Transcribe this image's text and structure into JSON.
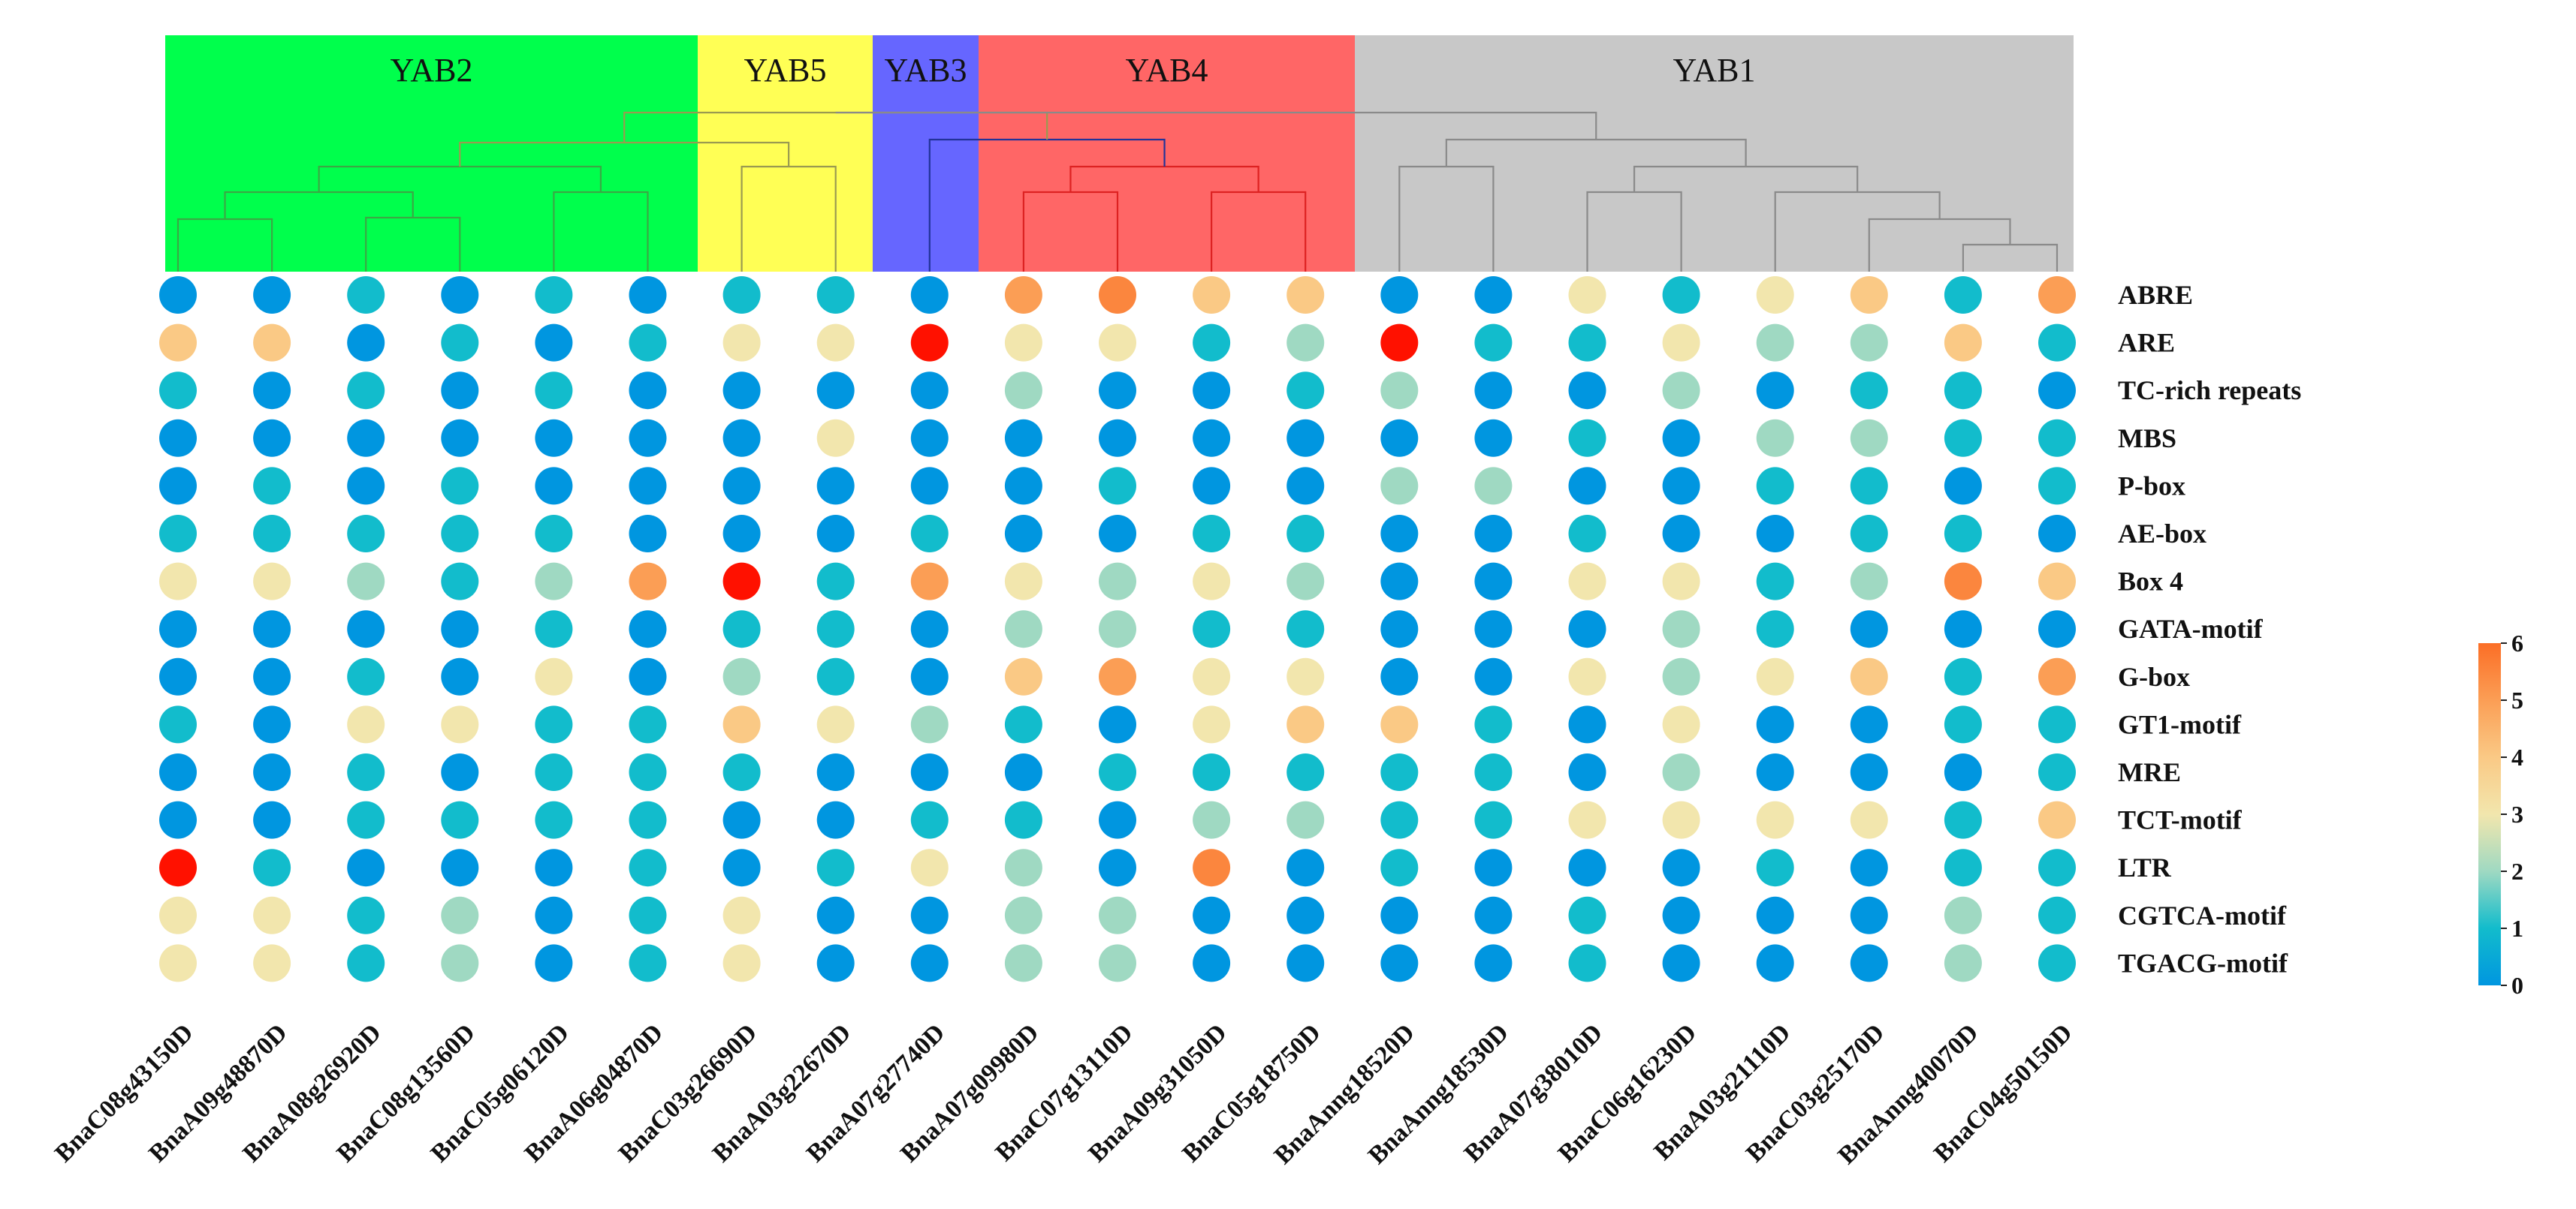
{
  "chart_data": {
    "type": "heatmap",
    "title": "",
    "groups": [
      {
        "name": "YAB2",
        "color": "#00ff4c"
      },
      {
        "name": "YAB5",
        "color": "#ffff55"
      },
      {
        "name": "YAB3",
        "color": "#6666ff"
      },
      {
        "name": "YAB4",
        "color": "#ff6666"
      },
      {
        "name": "YAB1",
        "color": "#c8c8c8"
      }
    ],
    "columns": [
      "BnaC08g43150D",
      "BnaA09g48870D",
      "BnaA08g26920D",
      "BnaC08g13560D",
      "BnaC05g06120D",
      "BnaA06g04870D",
      "BnaC03g26690D",
      "BnaA03g22670D",
      "BnaA07g27740D",
      "BnaA07g09980D",
      "BnaC07g13110D",
      "BnaA09g31050D",
      "BnaC05g18750D",
      "BnaAnng18520D",
      "BnaAnng18530D",
      "BnaA07g38010D",
      "BnaC06g16230D",
      "BnaA03g21110D",
      "BnaC03g25170D",
      "BnaAnng40070D",
      "BnaC04g50150D"
    ],
    "column_groups": [
      "YAB2",
      "YAB2",
      "YAB2",
      "YAB2",
      "YAB2",
      "YAB2",
      "YAB5",
      "YAB5",
      "YAB3",
      "YAB4",
      "YAB4",
      "YAB4",
      "YAB4",
      "YAB1",
      "YAB1",
      "YAB1",
      "YAB1",
      "YAB1",
      "YAB1",
      "YAB1",
      "YAB1"
    ],
    "rows": [
      "ABRE",
      "ARE",
      "TC-rich repeats",
      "MBS",
      "P-box",
      "AE-box",
      "Box 4",
      "GATA-motif",
      "G-box",
      "GT1-motif",
      "MRE",
      "TCT-motif",
      "LTR",
      "CGTCA-motif",
      "TGACG-motif"
    ],
    "values": [
      [
        0,
        0,
        1,
        0,
        1,
        0,
        1,
        1,
        0,
        5,
        5.5,
        4,
        4,
        0,
        0,
        3,
        1,
        3,
        4,
        1,
        5
      ],
      [
        4,
        4,
        0,
        1,
        0,
        1,
        3,
        3,
        6,
        3,
        3,
        1,
        2,
        6,
        1,
        1,
        3,
        2,
        2,
        4,
        1
      ],
      [
        1,
        0,
        1,
        0,
        1,
        0,
        0,
        0,
        0,
        2,
        0,
        0,
        1,
        2,
        0,
        0,
        2,
        0,
        1,
        1,
        0
      ],
      [
        0,
        0,
        0,
        0,
        0,
        0,
        0,
        3,
        0,
        0,
        0,
        0,
        0,
        0,
        0,
        1,
        0,
        2,
        2,
        1,
        1
      ],
      [
        0,
        1,
        0,
        1,
        0,
        0,
        0,
        0,
        0,
        0,
        1,
        0,
        0,
        2,
        2,
        0,
        0,
        1,
        1,
        0,
        1
      ],
      [
        1,
        1,
        1,
        1,
        1,
        0,
        0,
        0,
        1,
        0,
        0,
        1,
        1,
        0,
        0,
        1,
        0,
        0,
        1,
        1,
        0
      ],
      [
        3,
        3,
        2,
        1,
        2,
        5,
        6,
        1,
        5,
        3,
        2,
        3,
        2,
        0,
        0,
        3,
        3,
        1,
        2,
        5.5,
        4
      ],
      [
        0,
        0,
        0,
        0,
        1,
        0,
        1,
        1,
        0,
        2,
        2,
        1,
        1,
        0,
        0,
        0,
        2,
        1,
        0,
        0,
        0
      ],
      [
        0,
        0,
        1,
        0,
        3,
        0,
        2,
        1,
        0,
        4,
        5,
        3,
        3,
        0,
        0,
        3,
        2,
        3,
        4,
        1,
        5
      ],
      [
        1,
        0,
        3,
        3,
        1,
        1,
        4,
        3,
        2,
        1,
        0,
        3,
        4,
        4,
        1,
        0,
        3,
        0,
        0,
        1,
        1
      ],
      [
        0,
        0,
        1,
        0,
        1,
        1,
        1,
        0,
        0,
        0,
        1,
        1,
        1,
        1,
        1,
        0,
        2,
        0,
        0,
        0,
        1
      ],
      [
        0,
        0,
        1,
        1,
        1,
        1,
        0,
        0,
        1,
        1,
        0,
        2,
        2,
        1,
        1,
        3,
        3,
        3,
        3,
        1,
        4
      ],
      [
        6,
        1,
        0,
        0,
        0,
        1,
        0,
        1,
        3,
        2,
        0,
        5.5,
        0,
        1,
        0,
        0,
        0,
        1,
        0,
        1,
        1
      ],
      [
        3,
        3,
        1,
        2,
        0,
        1,
        3,
        0,
        0,
        2,
        2,
        0,
        0,
        0,
        0,
        1,
        0,
        0,
        0,
        2,
        1
      ],
      [
        3,
        3,
        1,
        2,
        0,
        1,
        3,
        0,
        0,
        2,
        2,
        0,
        0,
        0,
        0,
        1,
        0,
        0,
        0,
        2,
        1
      ]
    ],
    "colorbar": {
      "min": 0,
      "max": 6,
      "ticks": [
        "0",
        "1",
        "2",
        "3",
        "4",
        "5",
        "6"
      ],
      "colors": [
        "#0096e0",
        "#12bccc",
        "#9fd9c2",
        "#f2e6ad",
        "#fac985",
        "#fb9e55",
        "#fb6e26"
      ]
    },
    "dendrogram_line_colors": {
      "YAB2": "#3aa845",
      "YAB5": "#9a9a50",
      "YAB3": "#223399",
      "YAB4": "#dd2222",
      "YAB1": "#8a8a8a",
      "root": "#8a8a8a"
    }
  }
}
